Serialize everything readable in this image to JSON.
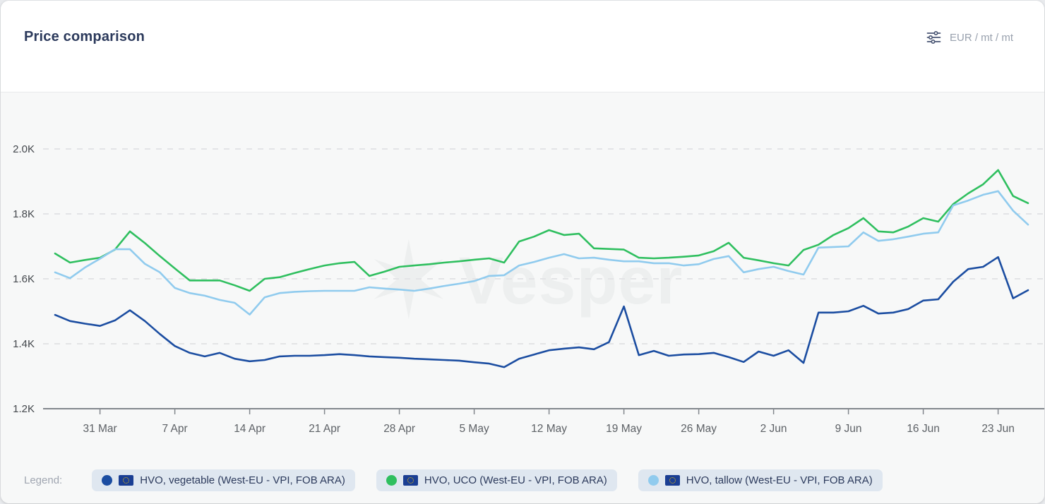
{
  "header": {
    "title": "Price comparison",
    "unit_selector": {
      "label": "EUR / mt / mt",
      "icon": "sliders-icon"
    }
  },
  "watermark": {
    "text": "Vesper"
  },
  "legend": {
    "label": "Legend:",
    "items": [
      {
        "label": "HVO, vegetable (West-EU - VPI, FOB ARA)",
        "color": "#1b4da1",
        "flag": "eu"
      },
      {
        "label": "HVO, UCO (West-EU - VPI, FOB ARA)",
        "color": "#2fbf5f",
        "flag": "eu"
      },
      {
        "label": "HVO, tallow (West-EU - VPI, FOB ARA)",
        "color": "#90cbee",
        "flag": "eu"
      }
    ]
  },
  "chart_data": {
    "type": "line",
    "title": "Price comparison",
    "unit": "EUR / mt",
    "grid": "horizontal-dashed",
    "legend_position": "bottom",
    "ylim": [
      1200,
      2000
    ],
    "y_ticks": [
      {
        "label": "2.0K",
        "value": 2000
      },
      {
        "label": "1.8K",
        "value": 1800
      },
      {
        "label": "1.6K",
        "value": 1600
      },
      {
        "label": "1.4K",
        "value": 1400
      },
      {
        "label": "1.2K",
        "value": 1200
      }
    ],
    "x_tick_labels": [
      "31 Mar",
      "7 Apr",
      "14 Apr",
      "21 Apr",
      "28 Apr",
      "5 May",
      "12 May",
      "19 May",
      "26 May",
      "2 Jun",
      "9 Jun",
      "16 Jun",
      "23 Jun"
    ],
    "x": [
      "26 Mar",
      "27 Mar",
      "28 Mar",
      "31 Mar",
      "1 Apr",
      "2 Apr",
      "3 Apr",
      "4 Apr",
      "7 Apr",
      "8 Apr",
      "9 Apr",
      "10 Apr",
      "11 Apr",
      "14 Apr",
      "15 Apr",
      "16 Apr",
      "17 Apr",
      "18 Apr",
      "21 Apr",
      "22 Apr",
      "23 Apr",
      "24 Apr",
      "25 Apr",
      "28 Apr",
      "29 Apr",
      "30 Apr",
      "1 May",
      "2 May",
      "5 May",
      "6 May",
      "7 May",
      "8 May",
      "9 May",
      "12 May",
      "13 May",
      "14 May",
      "15 May",
      "16 May",
      "19 May",
      "20 May",
      "21 May",
      "22 May",
      "23 May",
      "26 May",
      "27 May",
      "28 May",
      "29 May",
      "30 May",
      "2 Jun",
      "3 Jun",
      "4 Jun",
      "5 Jun",
      "6 Jun",
      "9 Jun",
      "10 Jun",
      "11 Jun",
      "12 Jun",
      "13 Jun",
      "16 Jun",
      "17 Jun",
      "18 Jun",
      "19 Jun",
      "20 Jun",
      "23 Jun",
      "24 Jun",
      "25 Jun"
    ],
    "draw_order": [
      1,
      2,
      0
    ],
    "series": [
      {
        "id": "hvo-vegetable",
        "name": "HVO, vegetable (West-EU - VPI, FOB ARA)",
        "color": "#1b4da1",
        "values": [
          1489,
          1470,
          1462,
          1455,
          1472,
          1503,
          1470,
          1430,
          1393,
          1372,
          1361,
          1372,
          1354,
          1346,
          1350,
          1361,
          1363,
          1363,
          1365,
          1368,
          1365,
          1361,
          1359,
          1357,
          1354,
          1352,
          1350,
          1348,
          1343,
          1339,
          1328,
          1354,
          1367,
          1380,
          1385,
          1389,
          1383,
          1405,
          1515,
          1365,
          1378,
          1363,
          1367,
          1368,
          1372,
          1359,
          1344,
          1376,
          1363,
          1380,
          1341,
          1496,
          1496,
          1500,
          1517,
          1493,
          1496,
          1507,
          1533,
          1537,
          1591,
          1630,
          1637,
          1667,
          1540,
          1565
        ]
      },
      {
        "id": "hvo-uco",
        "name": "HVO, UCO (West-EU - VPI, FOB ARA)",
        "color": "#2fbf5f",
        "values": [
          1678,
          1650,
          1658,
          1665,
          1690,
          1746,
          1710,
          1670,
          1632,
          1595,
          1595,
          1595,
          1580,
          1563,
          1600,
          1605,
          1618,
          1630,
          1641,
          1648,
          1652,
          1609,
          1622,
          1637,
          1641,
          1645,
          1650,
          1654,
          1659,
          1663,
          1650,
          1715,
          1730,
          1750,
          1735,
          1739,
          1694,
          1692,
          1690,
          1665,
          1663,
          1665,
          1668,
          1672,
          1685,
          1711,
          1665,
          1657,
          1648,
          1641,
          1689,
          1705,
          1735,
          1756,
          1787,
          1746,
          1743,
          1761,
          1787,
          1776,
          1830,
          1863,
          1891,
          1935,
          1855,
          1833
        ]
      },
      {
        "id": "hvo-tallow",
        "name": "HVO, tallow (West-EU - VPI, FOB ARA)",
        "color": "#90cbee",
        "values": [
          1620,
          1602,
          1635,
          1662,
          1691,
          1691,
          1646,
          1620,
          1572,
          1556,
          1548,
          1535,
          1526,
          1490,
          1543,
          1556,
          1560,
          1562,
          1563,
          1563,
          1563,
          1574,
          1570,
          1567,
          1563,
          1570,
          1578,
          1585,
          1593,
          1609,
          1611,
          1641,
          1652,
          1665,
          1676,
          1663,
          1665,
          1659,
          1654,
          1654,
          1648,
          1648,
          1641,
          1645,
          1661,
          1670,
          1620,
          1630,
          1637,
          1624,
          1613,
          1696,
          1698,
          1700,
          1743,
          1717,
          1722,
          1730,
          1739,
          1743,
          1826,
          1841,
          1859,
          1870,
          1810,
          1767
        ]
      }
    ]
  }
}
